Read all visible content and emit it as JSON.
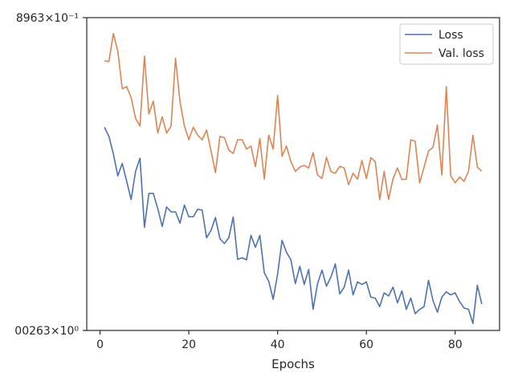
{
  "chart_data": {
    "type": "line",
    "title": "",
    "xlabel": "Epochs",
    "ylabel": "",
    "xlim": [
      -3,
      90
    ],
    "ylim": [
      0.00263,
      0.8963
    ],
    "yscale": "log",
    "grid": false,
    "legend_position": "top-right",
    "x_ticks": [
      0,
      20,
      40,
      60,
      80
    ],
    "y_tick_labels": [
      {
        "value": 0.8963,
        "text": "8963×10⁻¹"
      },
      {
        "value": 0.00263,
        "text": "00263×10⁰"
      }
    ],
    "series": [
      {
        "name": "Loss",
        "color": "#4c72b0",
        "x": [
          1,
          2,
          3,
          4,
          5,
          6,
          7,
          8,
          9,
          10,
          11,
          12,
          13,
          14,
          15,
          16,
          17,
          18,
          19,
          20,
          21,
          22,
          23,
          24,
          25,
          26,
          27,
          28,
          29,
          30,
          31,
          32,
          33,
          34,
          35,
          36,
          37,
          38,
          39,
          40,
          41,
          42,
          43,
          44,
          45,
          46,
          47,
          48,
          49,
          50,
          51,
          52,
          53,
          54,
          55,
          56,
          57,
          58,
          59,
          60,
          61,
          62,
          63,
          64,
          65,
          66,
          67,
          68,
          69,
          70,
          71,
          72,
          73,
          74,
          75,
          76,
          77,
          78,
          79,
          80,
          81,
          82,
          83,
          84,
          85,
          86
        ],
        "values": [
          0.1162,
          0.0979,
          0.0706,
          0.047,
          0.0592,
          0.0424,
          0.0302,
          0.051,
          0.0652,
          0.018,
          0.0338,
          0.0338,
          0.0255,
          0.0183,
          0.0263,
          0.024,
          0.024,
          0.0194,
          0.0272,
          0.0219,
          0.0219,
          0.0252,
          0.0248,
          0.0148,
          0.017,
          0.0216,
          0.0146,
          0.0133,
          0.0148,
          0.0218,
          0.0099,
          0.0102,
          0.0098,
          0.0155,
          0.0124,
          0.0155,
          0.0077,
          0.0066,
          0.0047,
          0.0075,
          0.0141,
          0.0113,
          0.0098,
          0.0063,
          0.0087,
          0.0062,
          0.0082,
          0.0039,
          0.0063,
          0.0081,
          0.006,
          0.0071,
          0.0091,
          0.0052,
          0.0059,
          0.0081,
          0.0051,
          0.0065,
          0.0062,
          0.0065,
          0.0049,
          0.0048,
          0.0041,
          0.0053,
          0.005,
          0.0059,
          0.0044,
          0.0055,
          0.0039,
          0.0048,
          0.0036,
          0.0039,
          0.0041,
          0.0067,
          0.0046,
          0.0037,
          0.0049,
          0.0054,
          0.0051,
          0.0053,
          0.0045,
          0.004,
          0.0039,
          0.003,
          0.0061,
          0.0043
        ]
      },
      {
        "name": "Val. loss",
        "color": "#dd8452",
        "x": [
          1,
          2,
          3,
          4,
          5,
          6,
          7,
          8,
          9,
          10,
          11,
          12,
          13,
          14,
          15,
          16,
          17,
          18,
          19,
          20,
          21,
          22,
          23,
          24,
          25,
          26,
          27,
          28,
          29,
          30,
          31,
          32,
          33,
          34,
          35,
          36,
          37,
          38,
          39,
          40,
          41,
          42,
          43,
          44,
          45,
          46,
          47,
          48,
          49,
          50,
          51,
          52,
          53,
          54,
          55,
          56,
          57,
          58,
          59,
          60,
          61,
          62,
          63,
          64,
          65,
          66,
          67,
          68,
          69,
          70,
          71,
          72,
          73,
          74,
          75,
          76,
          77,
          78,
          79,
          80,
          81,
          82,
          83,
          84,
          85,
          86
        ],
        "values": [
          0.4,
          0.3957,
          0.667,
          0.4795,
          0.238,
          0.2479,
          0.2018,
          0.1371,
          0.119,
          0.4381,
          0.1486,
          0.1891,
          0.1042,
          0.141,
          0.1042,
          0.119,
          0.421,
          0.1891,
          0.119,
          0.092,
          0.1162,
          0.1002,
          0.092,
          0.1103,
          0.0748,
          0.0498,
          0.0979,
          0.0959,
          0.0761,
          0.0712,
          0.092,
          0.092,
          0.0774,
          0.0818,
          0.0557,
          0.094,
          0.0442,
          0.1002,
          0.0774,
          0.2099,
          0.0675,
          0.0818,
          0.0612,
          0.051,
          0.0553,
          0.057,
          0.0544,
          0.0725,
          0.0477,
          0.0447,
          0.0664,
          0.051,
          0.0492,
          0.0561,
          0.0544,
          0.0398,
          0.0492,
          0.0442,
          0.0626,
          0.0447,
          0.0659,
          0.0612,
          0.0302,
          0.051,
          0.0302,
          0.0444,
          0.0544,
          0.0438,
          0.0442,
          0.092,
          0.0894,
          0.0412,
          0.0553,
          0.0748,
          0.0799,
          0.121,
          0.0477,
          0.2479,
          0.047,
          0.0412,
          0.0459,
          0.0424,
          0.051,
          0.1002,
          0.0553,
          0.051
        ]
      }
    ]
  }
}
